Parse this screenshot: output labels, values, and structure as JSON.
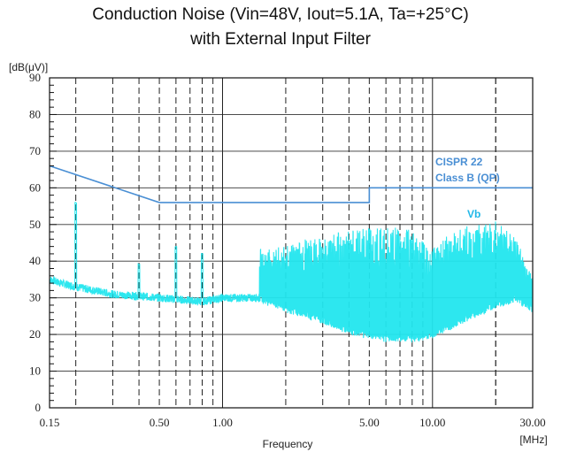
{
  "chart_data": {
    "type": "line",
    "title": "Conduction Noise  (Vin=48V, Iout=5.1A, Ta=+25°C)",
    "subtitle": "with External Input Filter",
    "ylabel": "[dB(μV)]",
    "xlabel": "Frequency",
    "xunit": "[MHz]",
    "xscale": "log",
    "xlim": [
      0.15,
      30
    ],
    "ylim": [
      0,
      90
    ],
    "xticks": [
      0.15,
      0.5,
      1.0,
      5.0,
      10.0,
      30.0
    ],
    "xtick_labels": [
      "0.15",
      "0.50",
      "1.00",
      "5.00",
      "10.00",
      "30.00"
    ],
    "yticks": [
      0,
      10,
      20,
      30,
      40,
      50,
      60,
      70,
      80,
      90
    ],
    "ytick_labels": [
      "0",
      "10",
      "20",
      "30",
      "40",
      "50",
      "60",
      "70",
      "80",
      "90"
    ],
    "grid": true,
    "limit_line": {
      "label_line1": "CISPR 22",
      "label_line2": "Class B (QP)",
      "color": "#4a8fd4",
      "points": [
        [
          0.15,
          66
        ],
        [
          0.5,
          56
        ],
        [
          5.0,
          56
        ],
        [
          5.0,
          60
        ],
        [
          30.0,
          60
        ]
      ]
    },
    "series": [
      {
        "name": "Vb",
        "color": "#22e6ee",
        "baseline": [
          [
            0.15,
            35
          ],
          [
            0.17,
            34
          ],
          [
            0.2,
            33
          ],
          [
            0.3,
            31
          ],
          [
            0.5,
            30
          ],
          [
            0.8,
            29
          ],
          [
            1.0,
            30
          ],
          [
            1.5,
            30
          ],
          [
            2.0,
            27
          ],
          [
            3.0,
            24
          ],
          [
            4.0,
            21
          ],
          [
            5.0,
            20
          ],
          [
            6.0,
            19
          ],
          [
            8.0,
            19
          ],
          [
            10.0,
            20
          ],
          [
            12.0,
            22
          ],
          [
            15.0,
            25
          ],
          [
            20.0,
            28
          ],
          [
            25.0,
            30
          ],
          [
            30.0,
            27
          ]
        ],
        "peaks": [
          [
            0.2,
            56
          ],
          [
            0.4,
            39
          ],
          [
            0.6,
            44
          ],
          [
            0.8,
            42
          ],
          [
            2.0,
            44
          ],
          [
            2.5,
            46
          ],
          [
            3.5,
            48
          ],
          [
            5.0,
            49
          ],
          [
            7.0,
            50
          ],
          [
            10.0,
            45
          ],
          [
            15.0,
            50
          ],
          [
            20.0,
            51
          ],
          [
            25.0,
            46
          ],
          [
            30.0,
            36
          ]
        ]
      }
    ]
  }
}
